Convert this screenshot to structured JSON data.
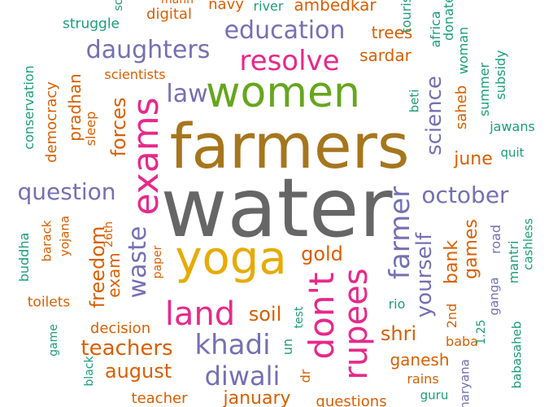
{
  "colors": {
    "gray": "#666666",
    "gold": "#a6761d",
    "green": "#66a61e",
    "pink": "#e7298a",
    "purple": "#7570b3",
    "orange": "#d95f02",
    "teal": "#1b9e77",
    "yellow": "#e6ab02"
  },
  "words": {
    "water": "water",
    "farmers": "farmers",
    "women": "women",
    "yoga": "yoga",
    "exams": "exams",
    "land": "land",
    "dont": "don't",
    "rupees": "rupees",
    "resolve": "resolve",
    "education": "education",
    "daughters": "daughters",
    "farmer": "farmer",
    "khadi": "khadi",
    "diwali": "diwali",
    "waste": "waste",
    "question": "question",
    "october": "october",
    "law": "law",
    "science": "science",
    "yourself": "yourself",
    "freedom": "freedom",
    "teachers": "teachers",
    "august": "august",
    "forces": "forces",
    "gold": "gold",
    "games": "games",
    "soil": "soil",
    "shri": "shri",
    "bank": "bank",
    "june": "june",
    "ganesh": "ganesh",
    "sardar": "sardar",
    "trees": "trees",
    "exam": "exam",
    "decision": "decision",
    "january": "january",
    "digital": "digital",
    "navy": "navy",
    "ambedkar": "ambedkar",
    "river": "river",
    "pradhan": "pradhan",
    "democracy": "democracy",
    "scientists": "scientists",
    "saheb": "saheb",
    "struggle": "struggle",
    "conservation": "conservation",
    "sleep": "sleep",
    "beti": "beti",
    "woman": "woman",
    "summer": "summer",
    "subsidy": "subsidy",
    "jawans": "jawans",
    "quit": "quit",
    "africa": "africa",
    "donate": "donate",
    "tourism": "tourism",
    "barack": "barack",
    "yojana": "yojana",
    "twentysixth": "26th",
    "paper": "paper",
    "buddha": "buddha",
    "toilets": "toilets",
    "game": "game",
    "black": "black",
    "teacher": "teacher",
    "dr": "dr",
    "un": "un",
    "test": "test",
    "rio": "rio",
    "second": "2nd",
    "baba": "baba",
    "onetwentyfive": "1.25",
    "rains": "rains",
    "guru": "guru",
    "haryana": "haryana",
    "ganga": "ganga",
    "road": "road",
    "babasaheb": "babasaheb",
    "mantri": "mantri",
    "cashless": "cashless",
    "questions": "questions",
    "sc": "sc",
    "mann": "mann"
  }
}
